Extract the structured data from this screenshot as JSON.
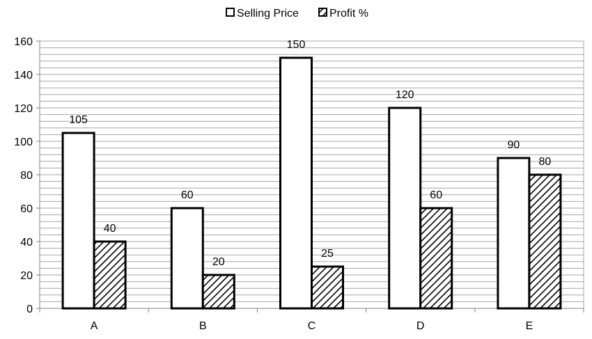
{
  "chart_data": {
    "type": "bar",
    "categories": [
      "A",
      "B",
      "C",
      "D",
      "E"
    ],
    "series": [
      {
        "name": "Selling Price",
        "values": [
          105,
          60,
          150,
          120,
          90
        ],
        "fill": "plain"
      },
      {
        "name": "Profit %",
        "values": [
          40,
          20,
          25,
          60,
          80
        ],
        "fill": "hatched"
      }
    ],
    "ylim": [
      0,
      160
    ],
    "yticks": [
      0,
      20,
      40,
      60,
      80,
      100,
      120,
      140,
      160
    ],
    "grid": true,
    "legend_position": "top-center",
    "data_labels": true,
    "title": "",
    "xlabel": "",
    "ylabel": ""
  },
  "colors": {
    "bar_stroke": "#000000",
    "bar_fill": "#ffffff",
    "grid": "#a6a6a6",
    "axis": "#808080"
  }
}
